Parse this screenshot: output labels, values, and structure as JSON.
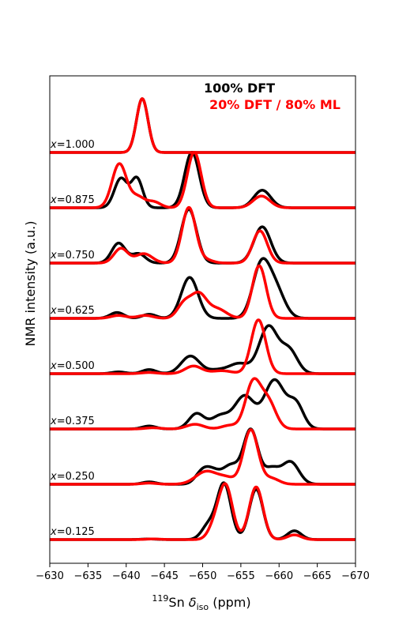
{
  "chart_data": {
    "type": "line",
    "xlabel": {
      "sup": "119",
      "main": "Sn ",
      "delta": "δ",
      "sub": "iso",
      "unit": " (ppm)"
    },
    "ylabel": "NMR intensity (a.u.)",
    "xlim": [
      -630,
      -670
    ],
    "x_ticks": [
      -630,
      -635,
      -640,
      -645,
      -650,
      -655,
      -660,
      -665,
      -670
    ],
    "y_ticks_shown": false,
    "legend": {
      "placement": "top-right",
      "entries": [
        {
          "label": "100% DFT",
          "color": "#000000"
        },
        {
          "label": "20% DFT / 80% ML",
          "color": "#ff0000"
        }
      ]
    },
    "panel_label_prefix": "x",
    "series": [
      {
        "name": "100% DFT",
        "color": "#000000",
        "panels": [
          {
            "x_value": "=1.000",
            "peaks": [
              [
                -642.1,
                0.92,
                0.75
              ]
            ]
          },
          {
            "x_value": "=0.875",
            "peaks": [
              [
                -639.3,
                0.5,
                0.85
              ],
              [
                -641.4,
                0.5,
                0.75
              ],
              [
                -648.6,
                0.95,
                0.95
              ],
              [
                -657.8,
                0.3,
                1.1
              ]
            ]
          },
          {
            "x_value": "=0.750",
            "peaks": [
              [
                -639.0,
                0.34,
                0.9
              ],
              [
                -641.6,
                0.16,
                0.9
              ],
              [
                -648.2,
                0.92,
                1.0
              ],
              [
                -657.8,
                0.62,
                1.1
              ]
            ]
          },
          {
            "x_value": "=0.625",
            "peaks": [
              [
                -638.8,
                0.1,
                0.9
              ],
              [
                -643.0,
                0.07,
                0.9
              ],
              [
                -648.3,
                0.7,
                1.1
              ],
              [
                -657.6,
                0.85,
                1.1
              ],
              [
                -659.5,
                0.5,
                1.2
              ]
            ]
          },
          {
            "x_value": "=0.500",
            "peaks": [
              [
                -639.0,
                0.03,
                0.9
              ],
              [
                -643.0,
                0.07,
                0.9
              ],
              [
                -648.4,
                0.3,
                1.2
              ],
              [
                -651.9,
                0.06,
                1.3
              ],
              [
                -654.8,
                0.17,
                1.3
              ],
              [
                -658.6,
                0.8,
                1.2
              ],
              [
                -661.3,
                0.4,
                1.1
              ]
            ]
          },
          {
            "x_value": "=0.375",
            "peaks": [
              [
                -643.0,
                0.05,
                0.9
              ],
              [
                -649.2,
                0.26,
                1.0
              ],
              [
                -652.3,
                0.22,
                1.2
              ],
              [
                -655.5,
                0.56,
                1.3
              ],
              [
                -659.4,
                0.83,
                1.3
              ],
              [
                -662.2,
                0.42,
                1.0
              ]
            ]
          },
          {
            "x_value": "=0.250",
            "peaks": [
              [
                -643.0,
                0.04,
                0.9
              ],
              [
                -650.0,
                0.22,
                0.9
              ],
              [
                -651.4,
                0.18,
                0.9
              ],
              [
                -653.7,
                0.32,
                1.1
              ],
              [
                -656.3,
                0.92,
                0.95
              ],
              [
                -659.0,
                0.26,
                1.0
              ],
              [
                -661.5,
                0.38,
                1.1
              ]
            ]
          },
          {
            "x_value": "=0.125",
            "peaks": [
              [
                -643.0,
                0.01,
                1.0
              ],
              [
                -650.8,
                0.25,
                0.9
              ],
              [
                -652.8,
                0.95,
                0.9
              ],
              [
                -657.0,
                0.86,
                0.9
              ],
              [
                -662.0,
                0.15,
                0.9
              ]
            ]
          }
        ]
      },
      {
        "name": "20% DFT / 80% ML",
        "color": "#ff0000",
        "panels": [
          {
            "x_value": "=1.000",
            "peaks": [
              [
                -642.1,
                0.92,
                0.75
              ]
            ]
          },
          {
            "x_value": "=0.875",
            "peaks": [
              [
                -639.1,
                0.75,
                0.95
              ],
              [
                -641.5,
                0.18,
                0.9
              ],
              [
                -643.6,
                0.1,
                0.9
              ],
              [
                -648.9,
                0.95,
                0.9
              ],
              [
                -657.7,
                0.2,
                1.1
              ]
            ]
          },
          {
            "x_value": "=0.750",
            "peaks": [
              [
                -639.3,
                0.25,
                0.9
              ],
              [
                -642.3,
                0.16,
                1.1
              ],
              [
                -648.2,
                0.95,
                0.9
              ],
              [
                -650.5,
                0.05,
                0.9
              ],
              [
                -657.5,
                0.55,
                0.95
              ]
            ]
          },
          {
            "x_value": "=0.625",
            "peaks": [
              [
                -639.0,
                0.05,
                1.0
              ],
              [
                -642.5,
                0.05,
                1.0
              ],
              [
                -647.6,
                0.25,
                0.9
              ],
              [
                -649.5,
                0.4,
                1.0
              ],
              [
                -651.9,
                0.16,
                1.2
              ],
              [
                -657.4,
                0.9,
                0.9
              ]
            ]
          },
          {
            "x_value": "=0.500",
            "peaks": [
              [
                -643.0,
                0.02,
                1.0
              ],
              [
                -648.8,
                0.13,
                1.1
              ],
              [
                -652.5,
                0.05,
                1.3
              ],
              [
                -657.3,
                0.92,
                0.95
              ]
            ]
          },
          {
            "x_value": "=0.375",
            "peaks": [
              [
                -643.5,
                0.02,
                1.0
              ],
              [
                -649.0,
                0.08,
                1.1
              ],
              [
                -653.5,
                0.06,
                1.0
              ],
              [
                -656.6,
                0.79,
                1.0
              ],
              [
                -658.6,
                0.45,
                1.0
              ]
            ]
          },
          {
            "x_value": "=0.250",
            "peaks": [
              [
                -643.0,
                0.02,
                1.0
              ],
              [
                -650.5,
                0.22,
                1.4
              ],
              [
                -653.2,
                0.1,
                1.1
              ],
              [
                -656.3,
                0.93,
                0.95
              ],
              [
                -659.0,
                0.1,
                1.0
              ]
            ]
          },
          {
            "x_value": "=0.125",
            "peaks": [
              [
                -643.5,
                0.01,
                1.0
              ],
              [
                -651.5,
                0.2,
                0.8
              ],
              [
                -653.0,
                0.92,
                0.9
              ],
              [
                -657.0,
                0.9,
                0.9
              ],
              [
                -662.0,
                0.08,
                0.9
              ]
            ]
          }
        ]
      }
    ]
  }
}
